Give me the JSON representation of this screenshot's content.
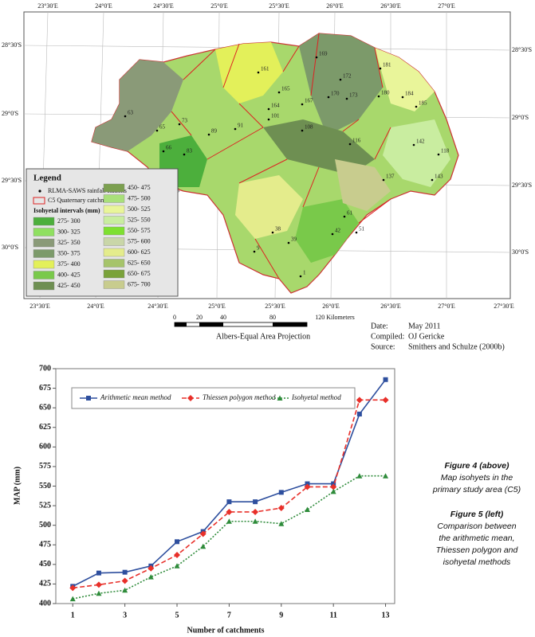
{
  "map": {
    "lon_labels_top": [
      "23°30'E",
      "24°0'E",
      "24°30'E",
      "25°0'E",
      "25°30'E",
      "26°0'E",
      "26°30'E",
      "27°0'E"
    ],
    "lon_labels_bottom": [
      "23°30'E",
      "24°0'E",
      "24°30'E",
      "25°0'E",
      "25°30'E",
      "26°0'E",
      "26°30'E",
      "27°0'E",
      "27°30'E"
    ],
    "lat_labels_left": [
      "28°30'S",
      "29°0'S",
      "29°30'S",
      "30°0'S"
    ],
    "lat_labels_right": [
      "28°30'S",
      "29°0'S",
      "29°30'S",
      "30°0'S"
    ],
    "legend": {
      "title": "Legend",
      "stations": "RLMA-SAWS rainfall stations",
      "catchments": "C5 Quaternary catchments",
      "intervals_title": "Isohyetal intervals (mm)",
      "intervals": [
        {
          "label": "275- 300",
          "color": "#4caf3c"
        },
        {
          "label": "300- 325",
          "color": "#8fe060"
        },
        {
          "label": "325- 350",
          "color": "#8a9a78"
        },
        {
          "label": "350- 375",
          "color": "#7c9a6a"
        },
        {
          "label": "375- 400",
          "color": "#e3f05a"
        },
        {
          "label": "400- 425",
          "color": "#79c94a"
        },
        {
          "label": "425- 450",
          "color": "#6e8f52"
        },
        {
          "label": "450- 475",
          "color": "#7ca050"
        },
        {
          "label": "475- 500",
          "color": "#a9e07a"
        },
        {
          "label": "500- 525",
          "color": "#e9f59a"
        },
        {
          "label": "525- 550",
          "color": "#c9eda0"
        },
        {
          "label": "550- 575",
          "color": "#7ee030"
        },
        {
          "label": "575- 600",
          "color": "#c9d6a8"
        },
        {
          "label": "600- 625",
          "color": "#e4ec8c"
        },
        {
          "label": "625- 650",
          "color": "#a6c46a"
        },
        {
          "label": "650- 675",
          "color": "#7aa23a"
        },
        {
          "label": "675- 700",
          "color": "#c8cc8e"
        }
      ]
    },
    "stations": [
      "169",
      "161",
      "165",
      "164",
      "167",
      "170",
      "172",
      "173",
      "180",
      "181",
      "184",
      "185",
      "142",
      "143",
      "118",
      "116",
      "108",
      "101",
      "91",
      "89",
      "83",
      "73",
      "66",
      "65",
      "63",
      "55",
      "39",
      "38",
      "1",
      "9",
      "42",
      "51",
      "61",
      "137"
    ],
    "scale": {
      "ticks": [
        "0",
        "20",
        "40",
        "80",
        "120 Kilometers"
      ],
      "projection": "Albers-Equal Area Projection"
    },
    "credits": [
      {
        "key": "Date:",
        "value": "May 2011"
      },
      {
        "key": "Compiled:",
        "value": "OJ Gericke"
      },
      {
        "key": "Source:",
        "value": "Smithers and Schulze (2000b)"
      }
    ]
  },
  "chart_data": {
    "type": "line",
    "y_label": "MAP (mm)",
    "x_label": "Number of catchments",
    "x": [
      1,
      2,
      3,
      4,
      5,
      6,
      7,
      8,
      9,
      10,
      11,
      12,
      13
    ],
    "xlim": [
      0.35,
      13.35
    ],
    "xticks": [
      1,
      3,
      5,
      7,
      9,
      11,
      13
    ],
    "ylim": [
      400,
      700
    ],
    "yticks": [
      400,
      425,
      450,
      475,
      500,
      525,
      550,
      575,
      600,
      625,
      650,
      675,
      700
    ],
    "series": [
      {
        "name": "Arithmetic mean method",
        "color": "#2e4f9e",
        "marker": "square",
        "line_style": "solid",
        "values": [
          422,
          439,
          440,
          448,
          479,
          492,
          530,
          530,
          542,
          553,
          553,
          642,
          686
        ]
      },
      {
        "name": "Thiessen polygon method",
        "color": "#e8302a",
        "marker": "diamond",
        "line_style": "dashed",
        "values": [
          420,
          424,
          429,
          445,
          462,
          489,
          517,
          517,
          522,
          549,
          549,
          660,
          660
        ]
      },
      {
        "name": "Isohyetal method",
        "color": "#2e8b3a",
        "marker": "triangle",
        "line_style": "dotted",
        "values": [
          406,
          413,
          417,
          434,
          448,
          473,
          505,
          505,
          502,
          520,
          543,
          563,
          563
        ]
      }
    ]
  },
  "captions": [
    {
      "title": "Figure 4 (above)",
      "lines": [
        "Map isohyets in the",
        "primary study area (C5)"
      ]
    },
    {
      "title": "Figure 5 (left)",
      "lines": [
        "Comparison between",
        "the arithmetic mean,",
        "Thiessen polygon and",
        "isohyetal methods"
      ]
    }
  ]
}
